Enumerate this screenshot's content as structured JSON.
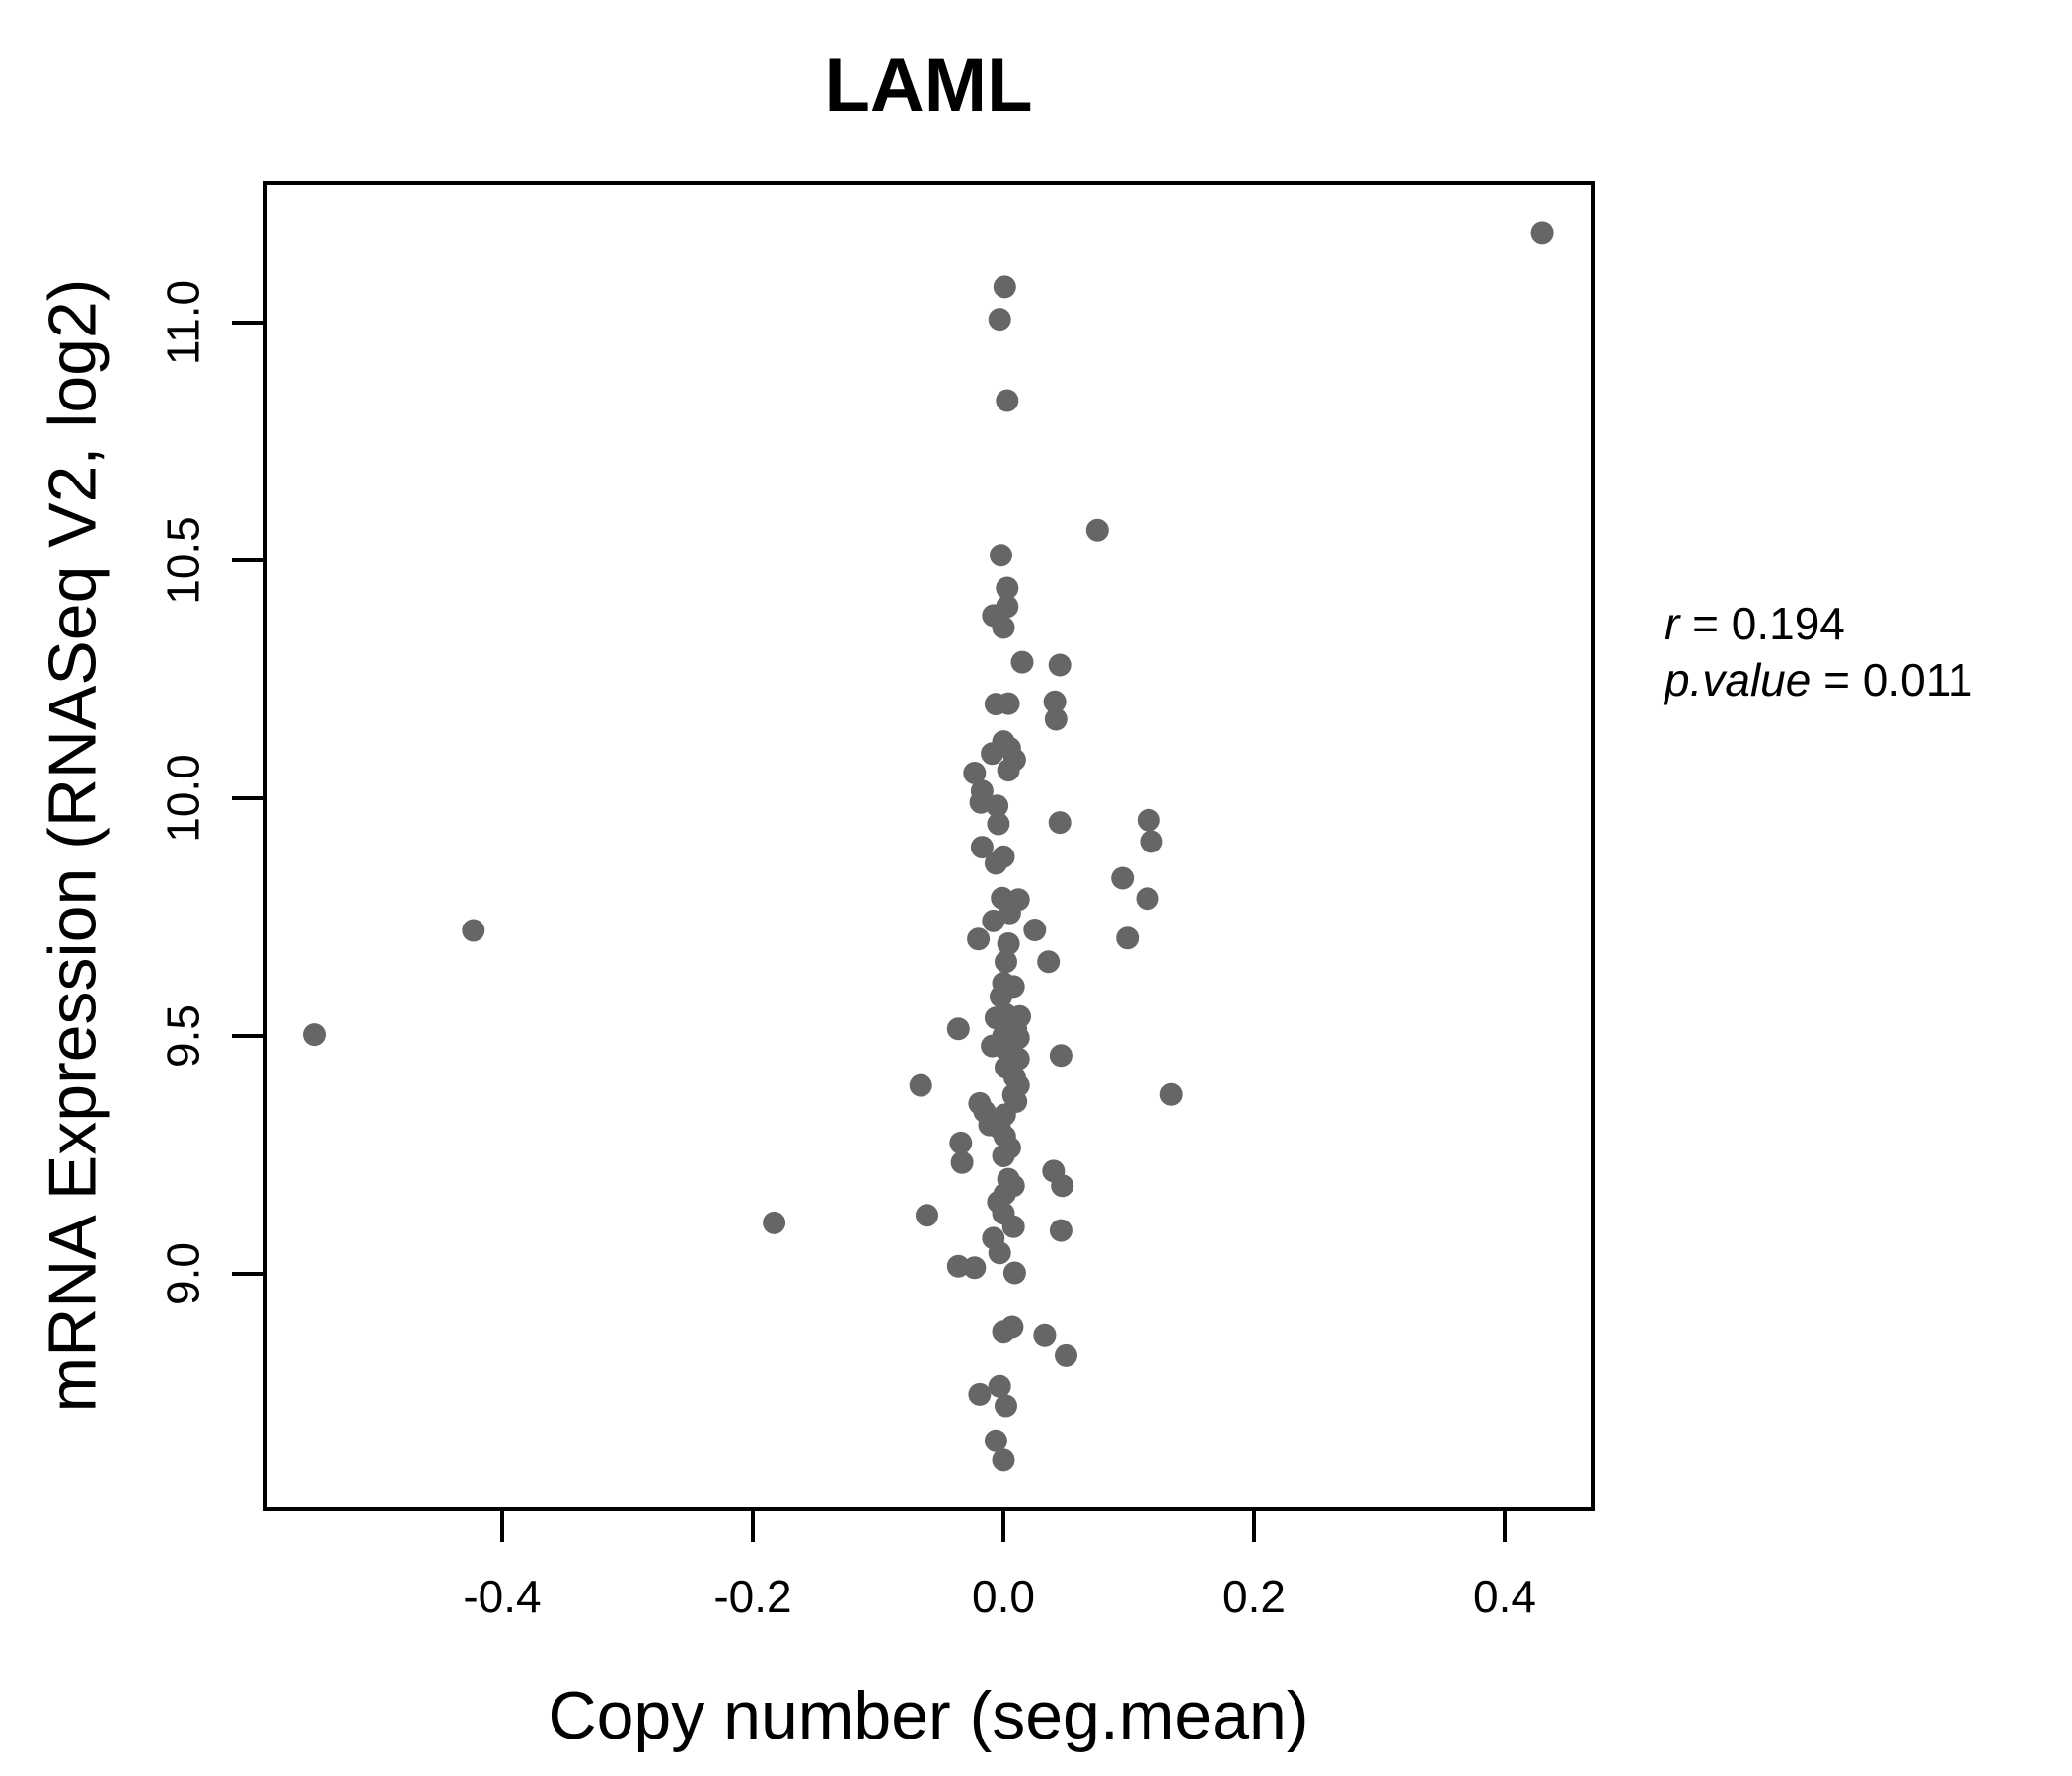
{
  "title": {
    "text": "LAML",
    "color": "#6b6b6b"
  },
  "annotation": {
    "r_label": "r",
    "r_eq": " = 0.194",
    "p_label": "p.value",
    "p_eq": " = 0.011"
  },
  "chart_data": {
    "type": "scatter",
    "title": "LAML",
    "xlabel": "Copy number (seg.mean)",
    "ylabel": "mRNA Expression (RNASeq V2, log2)",
    "xlim": [
      -0.589,
      0.471
    ],
    "ylim": [
      8.51,
      11.29
    ],
    "x_ticks": [
      -0.4,
      -0.2,
      0.0,
      0.2,
      0.4
    ],
    "x_tick_labels": [
      "-0.4",
      "-0.2",
      "0.0",
      "0.2",
      "0.4"
    ],
    "y_ticks": [
      9.0,
      9.5,
      10.0,
      10.5,
      11.0
    ],
    "y_tick_labels": [
      "9.0",
      "9.5",
      "10.0",
      "10.5",
      "11.0"
    ],
    "grid": false,
    "legend": "none",
    "point_color": "#666666",
    "point_radius_px": 11.5,
    "title_color": "#6b6b6b",
    "correlation": {
      "r": 0.194,
      "p_value": 0.011
    },
    "points": [
      [
        -0.55,
        9.503
      ],
      [
        -0.423,
        9.722
      ],
      [
        -0.183,
        9.107
      ],
      [
        0.43,
        11.189
      ],
      [
        0.001,
        11.075
      ],
      [
        -0.003,
        11.007
      ],
      [
        0.003,
        10.836
      ],
      [
        0.075,
        10.564
      ],
      [
        -0.002,
        10.511
      ],
      [
        0.003,
        10.442
      ],
      [
        0.003,
        10.403
      ],
      [
        -0.008,
        10.384
      ],
      [
        0.0,
        10.359
      ],
      [
        0.015,
        10.286
      ],
      [
        0.045,
        10.28
      ],
      [
        -0.006,
        10.198
      ],
      [
        0.004,
        10.199
      ],
      [
        0.041,
        10.203
      ],
      [
        0.042,
        10.166
      ],
      [
        0.0,
        10.119
      ],
      [
        0.005,
        10.105
      ],
      [
        -0.009,
        10.094
      ],
      [
        0.009,
        10.081
      ],
      [
        0.004,
        10.059
      ],
      [
        -0.023,
        10.053
      ],
      [
        -0.017,
        10.015
      ],
      [
        -0.018,
        9.991
      ],
      [
        -0.005,
        9.984
      ],
      [
        -0.004,
        9.946
      ],
      [
        0.045,
        9.949
      ],
      [
        0.116,
        9.954
      ],
      [
        0.118,
        9.909
      ],
      [
        -0.017,
        9.897
      ],
      [
        0.0,
        9.877
      ],
      [
        -0.006,
        9.863
      ],
      [
        0.095,
        9.832
      ],
      [
        -0.001,
        9.79
      ],
      [
        0.012,
        9.787
      ],
      [
        0.115,
        9.789
      ],
      [
        0.005,
        9.759
      ],
      [
        -0.008,
        9.742
      ],
      [
        0.025,
        9.723
      ],
      [
        -0.02,
        9.704
      ],
      [
        0.099,
        9.706
      ],
      [
        0.004,
        9.694
      ],
      [
        0.036,
        9.656
      ],
      [
        0.002,
        9.656
      ],
      [
        0.0,
        9.611
      ],
      [
        0.008,
        9.604
      ],
      [
        -0.002,
        9.583
      ],
      [
        0.002,
        9.545
      ],
      [
        0.013,
        9.541
      ],
      [
        -0.006,
        9.538
      ],
      [
        -0.036,
        9.515
      ],
      [
        0.01,
        9.514
      ],
      [
        0.0,
        9.5
      ],
      [
        0.012,
        9.496
      ],
      [
        -0.009,
        9.479
      ],
      [
        0.002,
        9.472
      ],
      [
        0.046,
        9.459
      ],
      [
        0.012,
        9.452
      ],
      [
        0.002,
        9.434
      ],
      [
        0.009,
        9.413
      ],
      [
        -0.066,
        9.396
      ],
      [
        0.012,
        9.396
      ],
      [
        0.134,
        9.377
      ],
      [
        0.008,
        9.376
      ],
      [
        0.01,
        9.362
      ],
      [
        -0.019,
        9.358
      ],
      [
        -0.015,
        9.341
      ],
      [
        0.001,
        9.334
      ],
      [
        -0.011,
        9.313
      ],
      [
        -0.003,
        9.306
      ],
      [
        0.001,
        9.289
      ],
      [
        -0.034,
        9.275
      ],
      [
        0.005,
        9.265
      ],
      [
        0.0,
        9.248
      ],
      [
        -0.033,
        9.234
      ],
      [
        0.04,
        9.216
      ],
      [
        0.004,
        9.199
      ],
      [
        0.047,
        9.185
      ],
      [
        0.008,
        9.185
      ],
      [
        0.001,
        9.168
      ],
      [
        -0.004,
        9.151
      ],
      [
        -0.061,
        9.123
      ],
      [
        0.0,
        9.127
      ],
      [
        0.008,
        9.099
      ],
      [
        0.046,
        9.091
      ],
      [
        -0.008,
        9.075
      ],
      [
        -0.003,
        9.044
      ],
      [
        -0.036,
        9.016
      ],
      [
        -0.023,
        9.013
      ],
      [
        0.009,
        9.002
      ],
      [
        0.007,
        8.888
      ],
      [
        0.0,
        8.878
      ],
      [
        0.033,
        8.871
      ],
      [
        0.05,
        8.829
      ],
      [
        -0.003,
        8.763
      ],
      [
        -0.019,
        8.746
      ],
      [
        0.002,
        8.722
      ],
      [
        -0.006,
        8.649
      ],
      [
        0.0,
        8.608
      ]
    ]
  }
}
